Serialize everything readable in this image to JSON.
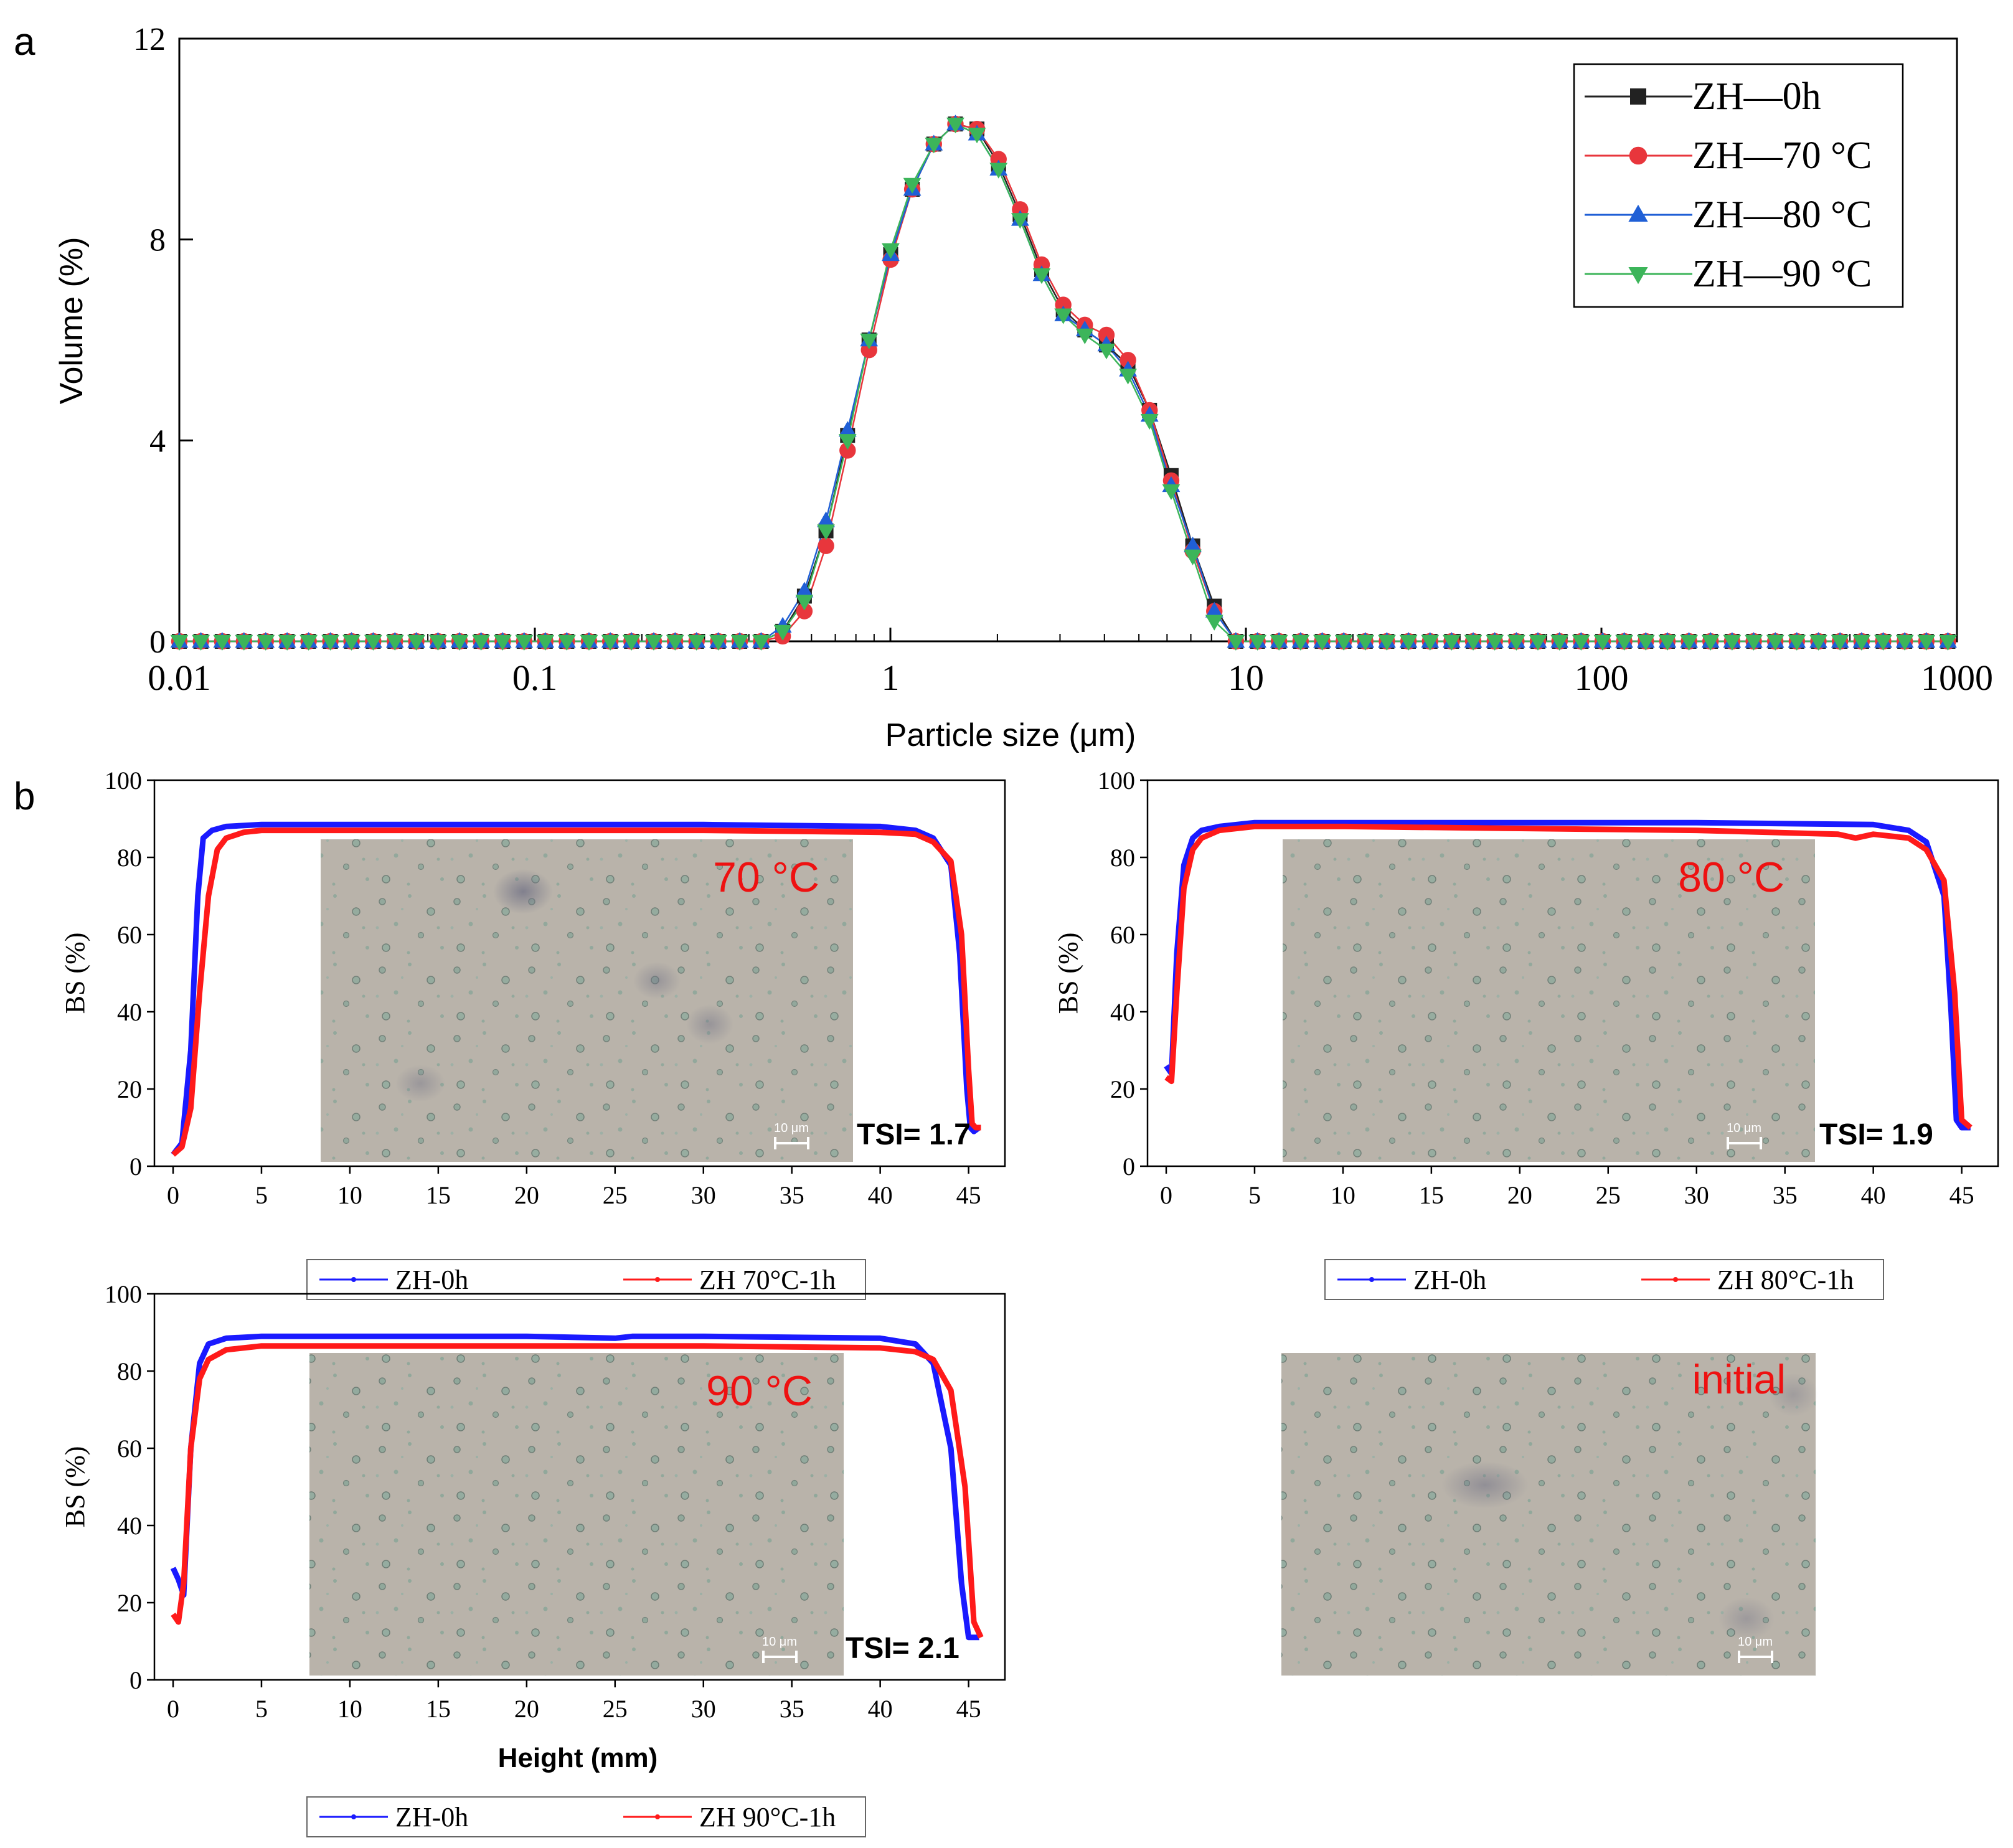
{
  "figure": {
    "panel_a_label": "a",
    "panel_b_label": "b"
  },
  "colors": {
    "zh_0h_a": "#222222",
    "zh_70_a": "#e8363c",
    "zh_80_a": "#1f5fd6",
    "zh_90_a": "#3cb55a",
    "bs_0h": "#1a1aff",
    "bs_heated": "#ff1a1a",
    "micro_bg": "#b9b3aa",
    "micro_label": "#ee1111"
  },
  "chart_data": [
    {
      "id": "psd",
      "type": "line",
      "title": "",
      "xlabel": "Particle size (μm)",
      "ylabel": "Volume (%)",
      "xscale": "log",
      "xlim": [
        0.01,
        1000
      ],
      "ylim": [
        0,
        12
      ],
      "xticks": [
        0.01,
        0.1,
        1,
        10,
        100,
        1000
      ],
      "xtick_labels": [
        "0.01",
        "0.1",
        "1",
        "10",
        "100",
        "1000"
      ],
      "yticks": [
        0,
        4,
        8,
        12
      ],
      "ytick_labels": [
        "0",
        "4",
        "8",
        "12"
      ],
      "legend_position": "top-right",
      "x": [
        0.01,
        0.0115,
        0.0132,
        0.0152,
        0.0175,
        0.0201,
        0.0231,
        0.0266,
        0.0305,
        0.0351,
        0.0404,
        0.0464,
        0.0534,
        0.0614,
        0.0706,
        0.0812,
        0.0933,
        0.107,
        0.123,
        0.142,
        0.163,
        0.187,
        0.216,
        0.248,
        0.285,
        0.328,
        0.377,
        0.433,
        0.498,
        0.573,
        0.659,
        0.758,
        0.871,
        1.002,
        1.152,
        1.325,
        1.524,
        1.752,
        2.015,
        2.317,
        2.664,
        3.064,
        3.523,
        4.052,
        4.659,
        5.358,
        6.162,
        7.086,
        8.149,
        9.37,
        10.78,
        12.39,
        14.25,
        16.39,
        18.85,
        21.67,
        24.92,
        28.66,
        32.96,
        37.9,
        43.58,
        50.12,
        57.64,
        66.28,
        76.22,
        87.65,
        100.8,
        115.9,
        133.3,
        153.3,
        176.3,
        202.7,
        233.1,
        268.1,
        308.3,
        354.5,
        407.7,
        468.9,
        539.2,
        620.1,
        713.1,
        820.1,
        943.1
      ],
      "series": [
        {
          "name": "ZH—0h",
          "marker": "square",
          "values": [
            0,
            0,
            0,
            0,
            0,
            0,
            0,
            0,
            0,
            0,
            0,
            0,
            0,
            0,
            0,
            0,
            0,
            0,
            0,
            0,
            0,
            0,
            0,
            0,
            0,
            0,
            0,
            0,
            0.2,
            0.9,
            2.2,
            4.1,
            6.0,
            7.7,
            9.0,
            9.9,
            10.3,
            10.2,
            9.5,
            8.5,
            7.4,
            6.6,
            6.2,
            5.9,
            5.5,
            4.6,
            3.3,
            1.9,
            0.7,
            0,
            0,
            0,
            0,
            0,
            0,
            0,
            0,
            0,
            0,
            0,
            0,
            0,
            0,
            0,
            0,
            0,
            0,
            0,
            0,
            0,
            0,
            0,
            0,
            0,
            0,
            0,
            0,
            0,
            0,
            0,
            0,
            0,
            0
          ]
        },
        {
          "name": "ZH—70 °C",
          "marker": "circle",
          "values": [
            0,
            0,
            0,
            0,
            0,
            0,
            0,
            0,
            0,
            0,
            0,
            0,
            0,
            0,
            0,
            0,
            0,
            0,
            0,
            0,
            0,
            0,
            0,
            0,
            0,
            0,
            0,
            0,
            0.1,
            0.6,
            1.9,
            3.8,
            5.8,
            7.6,
            9.0,
            9.9,
            10.3,
            10.2,
            9.6,
            8.6,
            7.5,
            6.7,
            6.3,
            6.1,
            5.6,
            4.6,
            3.2,
            1.8,
            0.6,
            0,
            0,
            0,
            0,
            0,
            0,
            0,
            0,
            0,
            0,
            0,
            0,
            0,
            0,
            0,
            0,
            0,
            0,
            0,
            0,
            0,
            0,
            0,
            0,
            0,
            0,
            0,
            0,
            0,
            0,
            0,
            0,
            0,
            0
          ]
        },
        {
          "name": "ZH—80 °C",
          "marker": "triangle-up",
          "values": [
            0,
            0,
            0,
            0,
            0,
            0,
            0,
            0,
            0,
            0,
            0,
            0,
            0,
            0,
            0,
            0,
            0,
            0,
            0,
            0,
            0,
            0,
            0,
            0,
            0,
            0,
            0,
            0,
            0.3,
            1.0,
            2.4,
            4.2,
            6.0,
            7.7,
            9.0,
            9.9,
            10.3,
            10.1,
            9.4,
            8.4,
            7.3,
            6.5,
            6.2,
            5.9,
            5.4,
            4.5,
            3.1,
            1.9,
            0.6,
            0,
            0,
            0,
            0,
            0,
            0,
            0,
            0,
            0,
            0,
            0,
            0,
            0,
            0,
            0,
            0,
            0,
            0,
            0,
            0,
            0,
            0,
            0,
            0,
            0,
            0,
            0,
            0,
            0,
            0,
            0,
            0,
            0,
            0
          ]
        },
        {
          "name": "ZH—90 °C",
          "marker": "triangle-down",
          "values": [
            0,
            0,
            0,
            0,
            0,
            0,
            0,
            0,
            0,
            0,
            0,
            0,
            0,
            0,
            0,
            0,
            0,
            0,
            0,
            0,
            0,
            0,
            0,
            0,
            0,
            0,
            0,
            0,
            0.2,
            0.8,
            2.2,
            4.0,
            6.0,
            7.8,
            9.1,
            9.9,
            10.3,
            10.1,
            9.4,
            8.4,
            7.3,
            6.5,
            6.1,
            5.8,
            5.3,
            4.4,
            3.0,
            1.7,
            0.4,
            0,
            0,
            0,
            0,
            0,
            0,
            0,
            0,
            0,
            0,
            0,
            0,
            0,
            0,
            0,
            0,
            0,
            0,
            0,
            0,
            0,
            0,
            0,
            0,
            0,
            0,
            0,
            0,
            0,
            0,
            0,
            0,
            0,
            0
          ]
        }
      ]
    },
    {
      "id": "bs70",
      "type": "line",
      "xlabel": "",
      "ylabel": "BS (%)",
      "xlim": [
        0,
        46
      ],
      "ylim": [
        0,
        100
      ],
      "xticks": [
        0,
        5,
        10,
        15,
        20,
        25,
        30,
        35,
        40,
        45
      ],
      "yticks": [
        0,
        20,
        40,
        60,
        80,
        100
      ],
      "tsi_label": "TSI= 1.7",
      "inset_label": "70 °C",
      "scale_bar_label": "10 μm",
      "series": [
        {
          "name": "ZH-0h",
          "x": [
            0,
            0.5,
            1,
            1.4,
            1.7,
            2.2,
            3,
            5,
            10,
            20,
            30,
            40,
            42,
            43,
            44,
            44.5,
            44.9,
            45.1,
            45.3,
            45.6
          ],
          "values": [
            3,
            6,
            30,
            70,
            85,
            87,
            88,
            88.5,
            88.5,
            88.5,
            88.5,
            88,
            87,
            85,
            78,
            55,
            20,
            10,
            9,
            10
          ]
        },
        {
          "name": "ZH 70°C-1h",
          "x": [
            0,
            0.5,
            1,
            1.5,
            2,
            2.5,
            3,
            4,
            5,
            10,
            20,
            30,
            40,
            42,
            43,
            44,
            44.6,
            45,
            45.2,
            45.4,
            45.7
          ],
          "values": [
            3,
            5,
            15,
            45,
            70,
            82,
            85,
            86.5,
            87,
            87,
            87,
            87,
            86.5,
            86,
            84,
            79,
            60,
            25,
            11,
            10,
            10
          ]
        }
      ],
      "legend": [
        "ZH-0h",
        "ZH 70°C-1h"
      ]
    },
    {
      "id": "bs80",
      "type": "line",
      "xlabel": "",
      "ylabel": "BS (%)",
      "xlim": [
        0,
        46
      ],
      "ylim": [
        0,
        100
      ],
      "xticks": [
        0,
        5,
        10,
        15,
        20,
        25,
        30,
        35,
        40,
        45
      ],
      "yticks": [
        0,
        20,
        40,
        60,
        80,
        100
      ],
      "tsi_label": "TSI= 1.9",
      "inset_label": "80 °C",
      "scale_bar_label": "10 μm",
      "series": [
        {
          "name": "ZH-0h",
          "x": [
            0,
            0.3,
            0.6,
            1,
            1.5,
            2,
            3,
            5,
            10,
            20,
            30,
            40,
            42,
            43,
            44,
            44.4,
            44.7,
            45,
            45.5
          ],
          "values": [
            26,
            24,
            55,
            78,
            85,
            87,
            88,
            89,
            89,
            89,
            89,
            88.5,
            87,
            84,
            70,
            40,
            12,
            10,
            10
          ]
        },
        {
          "name": "ZH 80°C-1h",
          "x": [
            0,
            0.3,
            0.6,
            1,
            1.5,
            2,
            3,
            5,
            10,
            20,
            30,
            38,
            39,
            40,
            42,
            43,
            44,
            44.6,
            45,
            45.5
          ],
          "values": [
            23,
            22,
            45,
            72,
            82,
            85,
            87,
            88,
            88,
            87.5,
            87,
            86,
            85,
            86,
            85,
            82,
            74,
            45,
            12,
            10
          ]
        }
      ],
      "legend": [
        "ZH-0h",
        "ZH 80°C-1h"
      ]
    },
    {
      "id": "bs90",
      "type": "line",
      "xlabel": "Height (mm)",
      "ylabel": "BS (%)",
      "xlim": [
        0,
        46
      ],
      "ylim": [
        0,
        100
      ],
      "xticks": [
        0,
        5,
        10,
        15,
        20,
        25,
        30,
        35,
        40,
        45
      ],
      "yticks": [
        0,
        20,
        40,
        60,
        80,
        100
      ],
      "tsi_label": "TSI= 2.1",
      "inset_label": "90 °C",
      "scale_bar_label": "10 μm",
      "series": [
        {
          "name": "ZH-0h",
          "x": [
            0,
            0.3,
            0.6,
            1,
            1.5,
            2,
            3,
            5,
            10,
            20,
            25,
            26,
            30,
            40,
            42,
            43,
            44,
            44.6,
            45,
            45.6
          ],
          "values": [
            29,
            26,
            22,
            60,
            82,
            87,
            88.5,
            89,
            89,
            89,
            88.5,
            89,
            89,
            88.5,
            87,
            82,
            60,
            25,
            11,
            11
          ]
        },
        {
          "name": "ZH 90°C-1h",
          "x": [
            0,
            0.3,
            0.6,
            1,
            1.5,
            2,
            3,
            5,
            10,
            20,
            30,
            40,
            42,
            43,
            44,
            44.8,
            45.3,
            45.7
          ],
          "values": [
            17,
            15,
            25,
            60,
            78,
            83,
            85.5,
            86.5,
            86.5,
            86.5,
            86.5,
            86,
            85,
            83,
            75,
            50,
            15,
            11
          ]
        }
      ],
      "legend": [
        "ZH-0h",
        "ZH 90°C-1h"
      ]
    },
    {
      "id": "initial",
      "type": "image",
      "inset_label": "initial",
      "scale_bar_label": "10 μm"
    }
  ]
}
